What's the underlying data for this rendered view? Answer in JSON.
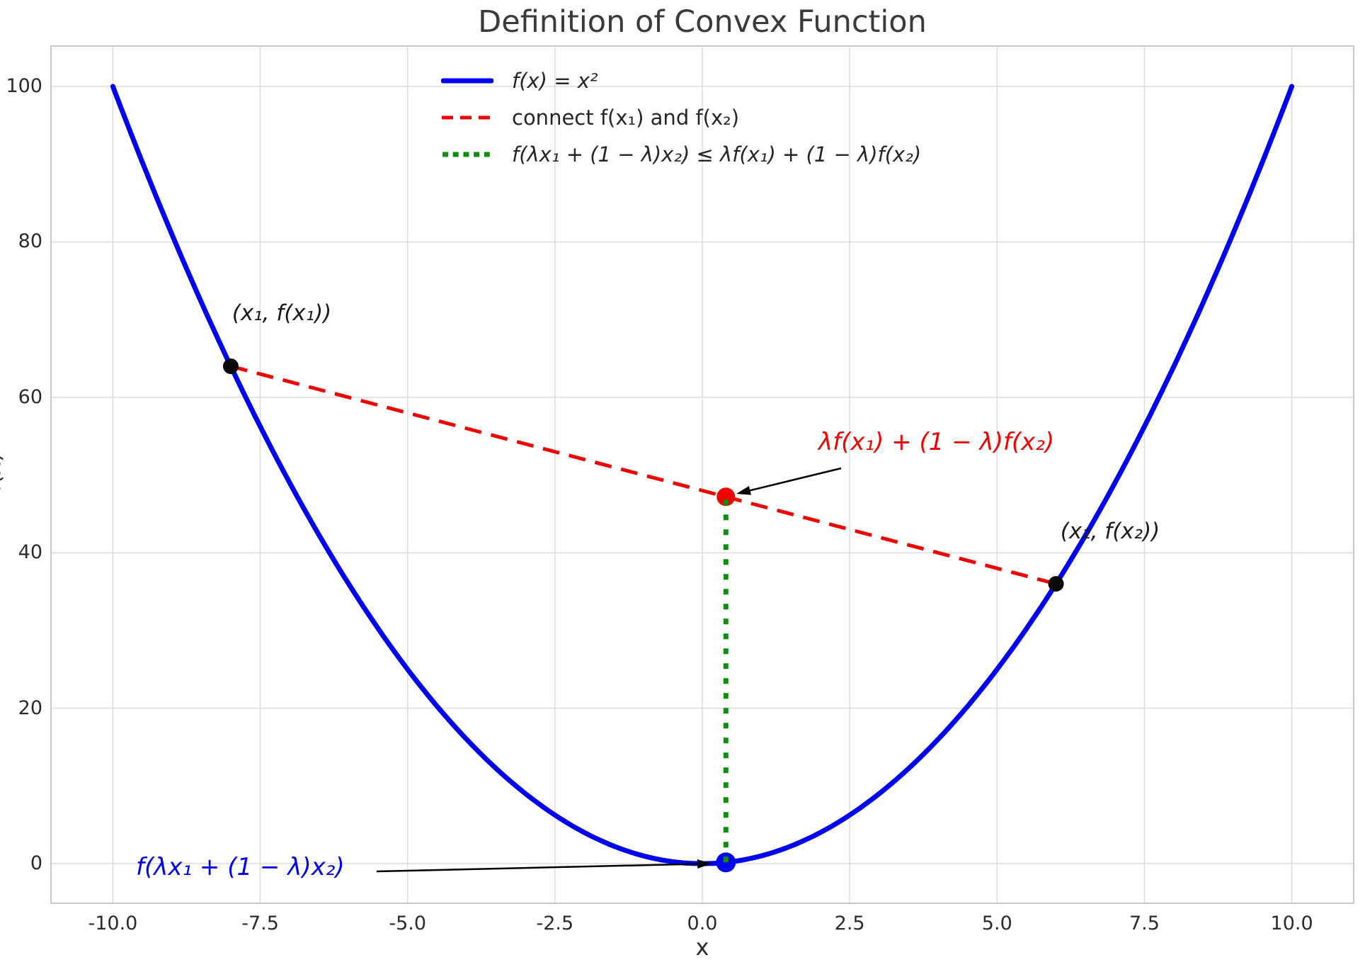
{
  "chart_data": {
    "type": "line",
    "title": "Definition of Convex Function",
    "xlabel": "x",
    "ylabel": "f(x)",
    "xlim": [
      -11.05,
      11.05
    ],
    "ylim": [
      -5.1,
      105.2
    ],
    "grid": true,
    "legend_position": "upper center-left, no frame",
    "x_ticks": {
      "values": [
        -10,
        -7.5,
        -5,
        -2.5,
        0,
        2.5,
        5,
        7.5,
        10
      ],
      "labels": [
        "-10.0",
        "-7.5",
        "-5.0",
        "-2.5",
        "0.0",
        "2.5",
        "5.0",
        "7.5",
        "10.0"
      ]
    },
    "y_ticks": {
      "values": [
        0,
        20,
        40,
        60,
        80,
        100
      ],
      "labels": [
        "0",
        "20",
        "40",
        "60",
        "80",
        "100"
      ]
    },
    "series": [
      {
        "name": "f(x) = x²",
        "type": "function",
        "fn": "x^2",
        "x_range": [
          -10,
          10
        ],
        "color": "#0000f5",
        "style": "solid",
        "width": 7
      },
      {
        "name": "connect f(x₁) and f(x₂)",
        "type": "segment",
        "points": [
          [
            -8,
            64
          ],
          [
            6,
            36
          ]
        ],
        "color": "#f50000",
        "style": "dashed",
        "width": 5
      },
      {
        "name": "f(λx₁ + (1 − λ)x₂) ≤ λf(x₁) + (1 − λ)f(x₂)",
        "type": "segment",
        "points": [
          [
            0.4,
            0.16
          ],
          [
            0.4,
            47.2
          ]
        ],
        "color": "#128c12",
        "style": "dotted",
        "width": 7
      }
    ],
    "points": [
      {
        "label": "(x₁, f(x₁))",
        "x": -8,
        "y": 64,
        "color": "#0a0a0a",
        "radius": 11
      },
      {
        "label": "(x₂, f(x₂))",
        "x": 6,
        "y": 36,
        "color": "#0a0a0a",
        "radius": 11
      },
      {
        "label": "λf(x₁) + (1 − λ)f(x₂)",
        "x": 0.4,
        "y": 47.2,
        "color": "#f50000",
        "radius": 13
      },
      {
        "label": "f(λx₁ + (1 − λ)x₂)",
        "x": 0.4,
        "y": 0.16,
        "color": "#0000f5",
        "radius": 14
      }
    ],
    "grid_color": "#dcdcdc",
    "frame_color": "#c8c8c8",
    "background": "#ffffff",
    "text_color": "#2b2b2b",
    "arrow_color": "#000000"
  }
}
